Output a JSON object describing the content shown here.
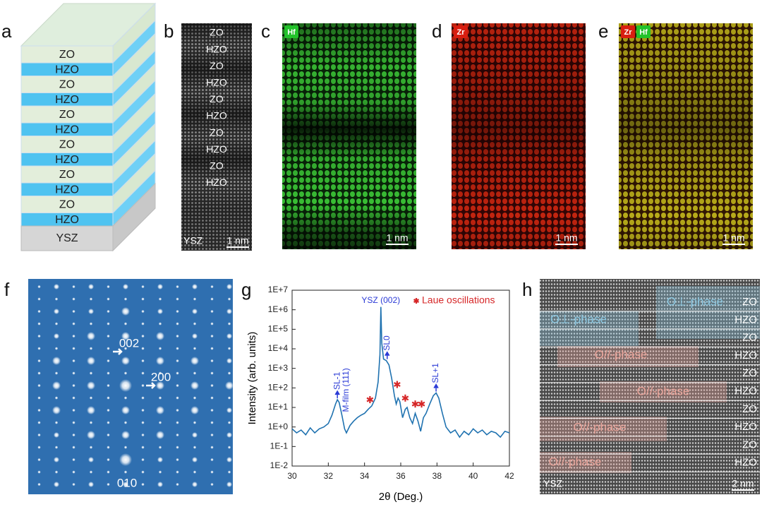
{
  "panels": {
    "a": {
      "label": "a",
      "layers": [
        "ZO",
        "HZO",
        "ZO",
        "HZO",
        "ZO",
        "HZO",
        "ZO",
        "HZO",
        "ZO",
        "HZO",
        "ZO",
        "HZO"
      ],
      "substrate": "YSZ"
    },
    "b": {
      "label": "b",
      "layers": [
        "ZO",
        "HZO",
        "ZO",
        "HZO",
        "ZO",
        "HZO",
        "ZO",
        "HZO",
        "ZO",
        "HZO"
      ],
      "substrate": "YSZ",
      "scale": "1 nm"
    },
    "c": {
      "label": "c",
      "elements": [
        "Hf"
      ],
      "scale": "1 nm"
    },
    "d": {
      "label": "d",
      "elements": [
        "Zr"
      ],
      "scale": "1 nm"
    },
    "e": {
      "label": "e",
      "elements": [
        "Zr",
        "Hf"
      ],
      "scale": "1 nm"
    },
    "f": {
      "label": "f",
      "spots": [
        "002",
        "200",
        "010"
      ]
    },
    "h": {
      "label": "h",
      "phases": [
        "O⊥-phase",
        "O⊥-phase",
        "O//-phase",
        "O//-phase",
        "O//-phase",
        "O//-phase"
      ],
      "layers": [
        "ZO",
        "HZO",
        "ZO",
        "HZO",
        "ZO",
        "HZO",
        "ZO",
        "HZO",
        "ZO",
        "HZO"
      ],
      "substrate": "YSZ",
      "scale": "2 nm"
    }
  },
  "chart_data": {
    "type": "line",
    "label": "g",
    "x_label": "2θ (Deg.)",
    "y_label": "Intensity (arb. units)",
    "xlim": [
      30,
      42
    ],
    "xticks": [
      30,
      32,
      34,
      36,
      38,
      40,
      42
    ],
    "ylim": [
      0.01,
      10000000
    ],
    "log_y": true,
    "yticks": [
      {
        "value": 0.01,
        "label": "1E-2"
      },
      {
        "value": 0.1,
        "label": "1E-1"
      },
      {
        "value": 1,
        "label": "1E+0"
      },
      {
        "value": 10,
        "label": "1E+1"
      },
      {
        "value": 100,
        "label": "1E+2"
      },
      {
        "value": 1000,
        "label": "1E+3"
      },
      {
        "value": 10000,
        "label": "1E+4"
      },
      {
        "value": 100000,
        "label": "1E+5"
      },
      {
        "value": 1000000,
        "label": "1E+6"
      },
      {
        "value": 10000000,
        "label": "1E+7"
      }
    ],
    "series": [
      {
        "color": "#1f72b0",
        "x": [
          30.0,
          30.25,
          30.5,
          30.75,
          31.0,
          31.25,
          31.5,
          31.75,
          32.0,
          32.2,
          32.4,
          32.5,
          32.6,
          32.75,
          32.9,
          33.0,
          33.2,
          33.4,
          33.6,
          33.8,
          34.0,
          34.2,
          34.4,
          34.6,
          34.75,
          34.85,
          34.9,
          34.95,
          35.05,
          35.2,
          35.35,
          35.5,
          35.65,
          35.75,
          35.85,
          35.95,
          36.1,
          36.25,
          36.35,
          36.5,
          36.65,
          36.8,
          36.95,
          37.1,
          37.25,
          37.4,
          37.6,
          37.8,
          37.95,
          38.1,
          38.3,
          38.5,
          38.75,
          39.0,
          39.25,
          39.5,
          39.75,
          40.0,
          40.25,
          40.5,
          40.75,
          41.0,
          41.25,
          41.5,
          41.75,
          42.0
        ],
        "values": [
          0.8,
          0.5,
          0.7,
          0.4,
          0.9,
          0.5,
          0.8,
          1.0,
          1.5,
          4,
          15,
          25,
          18,
          4,
          0.8,
          0.5,
          1.2,
          2,
          3,
          4,
          5,
          8,
          12,
          30,
          200,
          5000,
          1400000,
          20000,
          3000,
          2500,
          1500,
          300,
          40,
          15,
          30,
          20,
          3,
          8,
          10,
          3,
          1.5,
          5,
          2,
          0.6,
          3,
          5,
          15,
          40,
          55,
          30,
          5,
          1,
          0.5,
          0.7,
          0.3,
          0.6,
          0.4,
          0.8,
          0.5,
          0.7,
          0.4,
          0.6,
          0.5,
          0.3,
          0.6,
          0.5
        ]
      },
      {
        "name": "Laue oscillations",
        "color": "#d62728",
        "marker": "asterisk",
        "x": [
          34.3,
          35.8,
          36.25,
          36.8,
          37.15
        ],
        "values": [
          25,
          150,
          30,
          15,
          15
        ]
      }
    ],
    "annotations": [
      {
        "text": "YSZ (002)",
        "x": 34.9,
        "y": 1400000,
        "vertical": false,
        "arrow": false
      },
      {
        "text": "SL-1",
        "x": 32.5,
        "y": 25,
        "vertical": true,
        "arrow": true
      },
      {
        "text": "M-film (111)",
        "x": 33.0,
        "y": 3,
        "vertical": true,
        "arrow": false
      },
      {
        "text": "SL0",
        "x": 35.25,
        "y": 2500,
        "vertical": true,
        "arrow": true
      },
      {
        "text": "SL+1",
        "x": 37.95,
        "y": 55,
        "vertical": true,
        "arrow": true
      }
    ]
  }
}
